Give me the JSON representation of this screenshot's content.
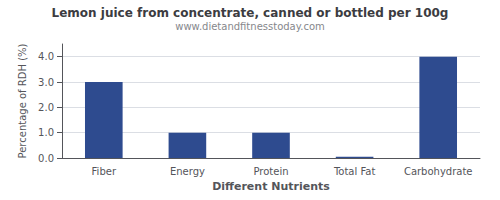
{
  "chart_data": {
    "type": "bar",
    "title": "Lemon juice from concentrate, canned or bottled per 100g",
    "subtitle": "www.dietandfitnesstoday.com",
    "xlabel": "Different Nutrients",
    "ylabel": "Percentage of RDH (%)",
    "categories": [
      "Fiber",
      "Energy",
      "Protein",
      "Total Fat",
      "Carbohydrate"
    ],
    "values": [
      3.0,
      1.0,
      1.0,
      0.05,
      4.0
    ],
    "color": "#2e4b8f",
    "ylim": [
      0,
      4.5
    ],
    "yticks": [
      {
        "value": 0,
        "label": "0.0"
      },
      {
        "value": 1,
        "label": "1.0"
      },
      {
        "value": 2,
        "label": "2.0"
      },
      {
        "value": 3,
        "label": "3.0"
      },
      {
        "value": 4,
        "label": "4.0"
      }
    ],
    "grid": true
  }
}
